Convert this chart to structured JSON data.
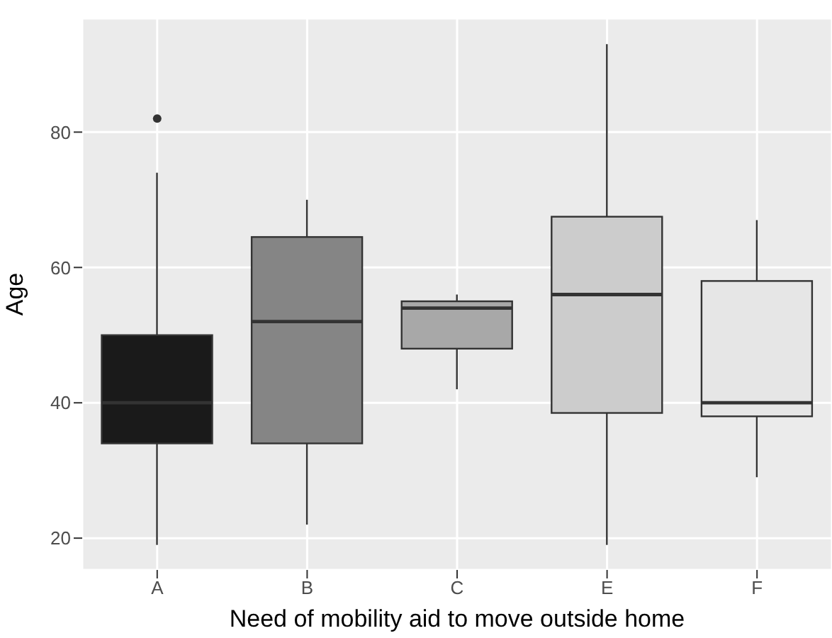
{
  "chart_data": {
    "type": "box",
    "xlabel": "Need of mobility aid to move outside home",
    "ylabel": "Age",
    "categories": [
      "A",
      "B",
      "C",
      "E",
      "F"
    ],
    "boxes": [
      {
        "low": 19,
        "q1": 34,
        "median": 40,
        "q3": 50,
        "high": 74,
        "outliers": [
          82
        ]
      },
      {
        "low": 22,
        "q1": 34,
        "median": 52,
        "q3": 64.5,
        "high": 70
      },
      {
        "low": 42,
        "q1": 48,
        "median": 54,
        "q3": 55,
        "high": 56
      },
      {
        "low": 19,
        "q1": 38.5,
        "median": 56,
        "q3": 67.5,
        "high": 93
      },
      {
        "low": 29,
        "q1": 38,
        "median": 40,
        "q3": 58,
        "high": 67
      }
    ],
    "colors": [
      "#1a1a1a",
      "#858585",
      "#a8a8a8",
      "#cccccc",
      "#e6e6e6"
    ],
    "ylim": [
      15.3,
      96.8
    ],
    "yticks": [
      20,
      40,
      60,
      80
    ],
    "grid": true
  }
}
